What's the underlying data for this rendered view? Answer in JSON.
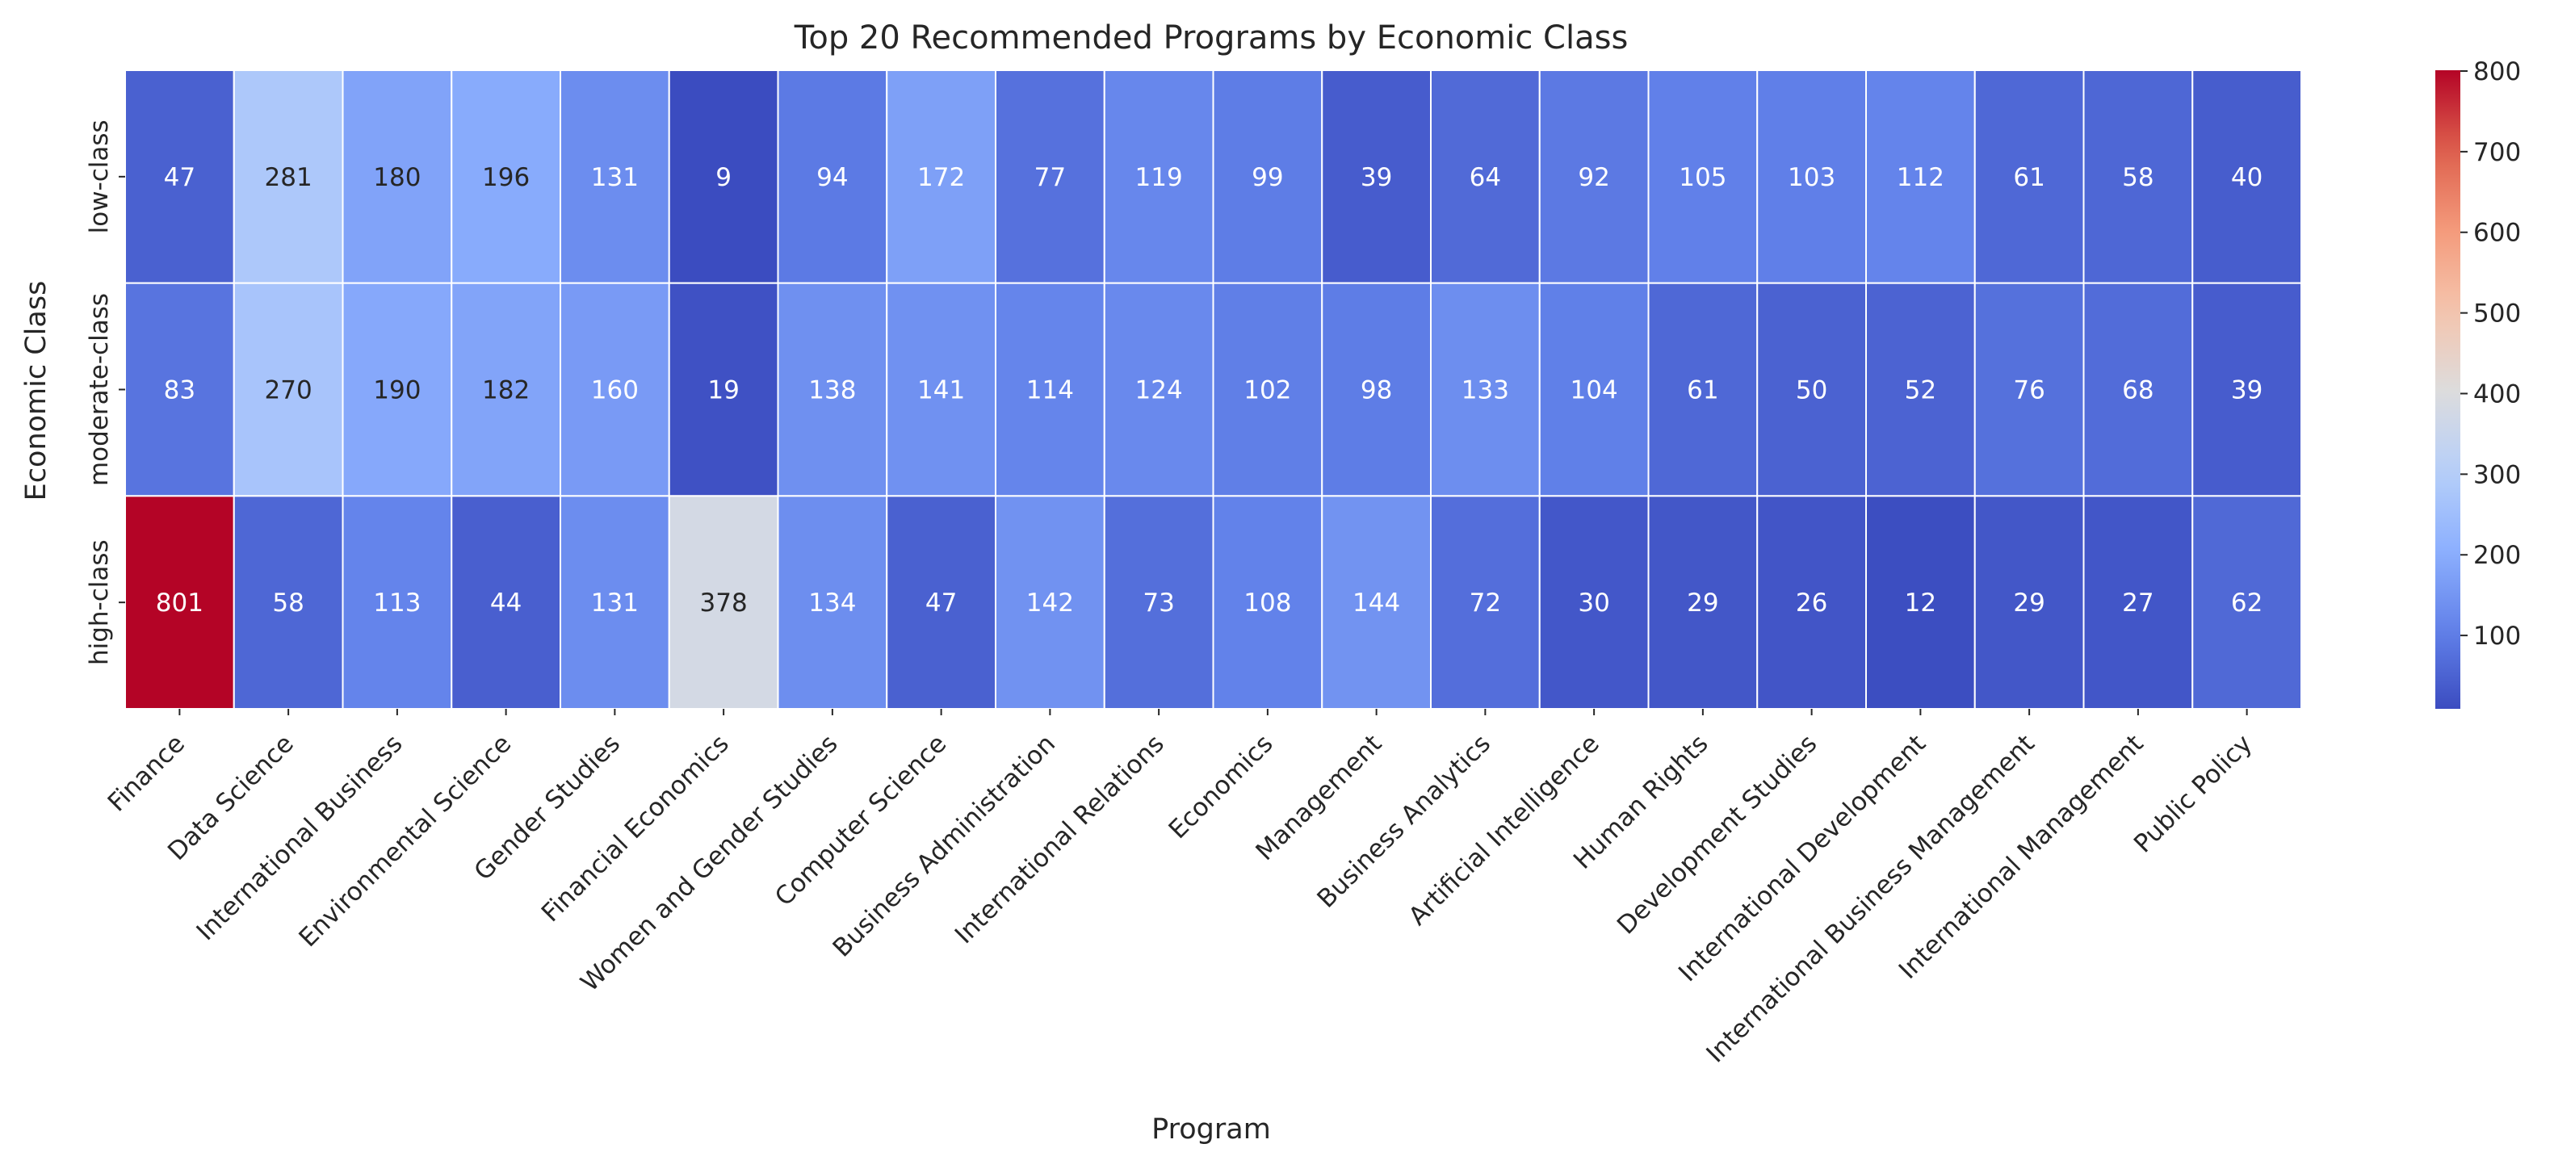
{
  "chart_data": {
    "type": "heatmap",
    "title": "Top 20 Recommended Programs by Economic Class",
    "xlabel": "Program",
    "ylabel": "Economic Class",
    "colormap": "coolwarm",
    "x_categories": [
      "Finance",
      "Data Science",
      "International Business",
      "Environmental Science",
      "Gender Studies",
      "Financial Economics",
      "Women and Gender Studies",
      "Computer Science",
      "Business Administration",
      "International Relations",
      "Economics",
      "Management",
      "Business Analytics",
      "Artificial Intelligence",
      "Human Rights",
      "Development Studies",
      "International Development",
      "International Business Management",
      "International Management",
      "Public Policy"
    ],
    "y_categories": [
      "low-class",
      "moderate-class",
      "high-class"
    ],
    "values": [
      [
        47,
        281,
        180,
        196,
        131,
        9,
        94,
        172,
        77,
        119,
        99,
        39,
        64,
        92,
        105,
        103,
        112,
        61,
        58,
        40
      ],
      [
        83,
        270,
        190,
        182,
        160,
        19,
        138,
        141,
        114,
        124,
        102,
        98,
        133,
        104,
        61,
        50,
        52,
        76,
        68,
        39
      ],
      [
        801,
        58,
        113,
        44,
        131,
        378,
        134,
        47,
        142,
        73,
        108,
        144,
        72,
        30,
        29,
        26,
        12,
        29,
        27,
        62
      ]
    ],
    "color_range": [
      9,
      801
    ],
    "colorbar_ticks": [
      100,
      200,
      300,
      400,
      500,
      600,
      700,
      800
    ],
    "grid": false,
    "legend": "colorbar right"
  }
}
